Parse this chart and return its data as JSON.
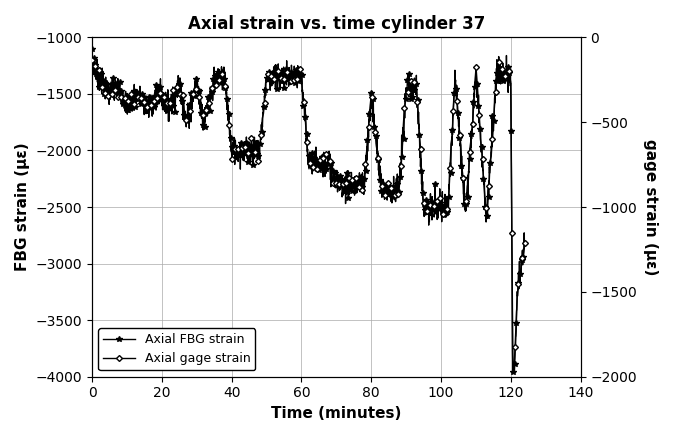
{
  "title": "Axial strain vs. time cylinder 37",
  "xlabel": "Time (minutes)",
  "ylabel_left": "FBG strain (με)",
  "ylabel_right": "gage strain (με)",
  "xlim": [
    0,
    140
  ],
  "ylim_left": [
    -4000,
    -1000
  ],
  "ylim_right": [
    -2000,
    0
  ],
  "yticks_left": [
    -4000,
    -3500,
    -3000,
    -2500,
    -2000,
    -1500,
    -1000
  ],
  "yticks_right": [
    -2000,
    -1500,
    -1000,
    -500,
    0
  ],
  "xticks": [
    0,
    20,
    40,
    60,
    80,
    100,
    120,
    140
  ],
  "legend_labels": [
    "Axial FBG strain",
    "Axial gage strain"
  ],
  "background_color": "#ffffff",
  "grid_color": "#aaaaaa",
  "line_color": "#000000",
  "title_fontsize": 12,
  "axis_label_fontsize": 11,
  "tick_fontsize": 10,
  "legend_fontsize": 9,
  "linewidth": 1.0
}
